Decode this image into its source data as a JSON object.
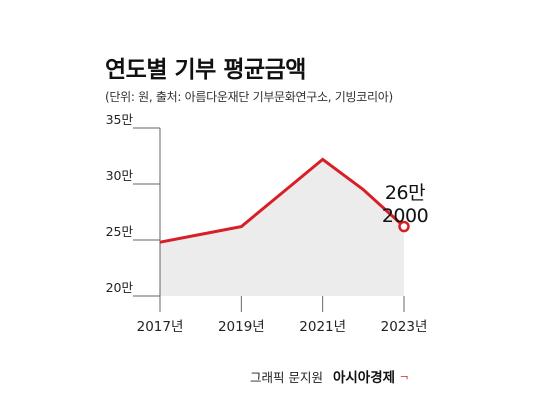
{
  "title": "연도별 기부 평균금액",
  "subtitle": "(단위: 원, 출처: 아름다운재단 기부문화연구소, 기빙코리아)",
  "credit": {
    "label": "그래픽 문지원",
    "brand": "아시아경제",
    "brand_mark": "ᆨ"
  },
  "colors": {
    "line": "#d81e26",
    "area": "#ececec",
    "axis": "#666666",
    "text": "#222222"
  },
  "chart_data": {
    "type": "area",
    "title": "연도별 기부 평균금액",
    "x": [
      2017,
      2018,
      2019,
      2020,
      2021,
      2022,
      2023
    ],
    "x_ticks": [
      2017,
      2019,
      2021,
      2023
    ],
    "x_tick_labels": [
      "2017년",
      "2019년",
      "2021년",
      "2023년"
    ],
    "y_ticks": [
      200000,
      250000,
      300000,
      350000
    ],
    "y_tick_labels": [
      "20만",
      "25만",
      "30만",
      "35만"
    ],
    "ylim": [
      200000,
      350000
    ],
    "series": [
      {
        "values": [
          248000,
          255000,
          262000,
          292000,
          322000,
          295000,
          262000
        ]
      }
    ],
    "annotation": {
      "x": 2023,
      "line1": "26만",
      "line2": "2000"
    },
    "grid": false
  }
}
